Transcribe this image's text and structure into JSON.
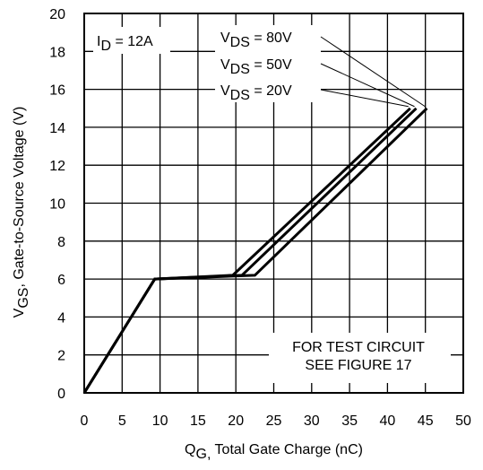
{
  "chart_data": {
    "type": "line",
    "xlim": [
      0,
      50
    ],
    "ylim": [
      0,
      20
    ],
    "xticks": [
      0,
      5,
      10,
      15,
      20,
      25,
      30,
      35,
      40,
      45,
      50
    ],
    "yticks": [
      0,
      2,
      4,
      6,
      8,
      10,
      12,
      14,
      16,
      18,
      20
    ],
    "xticks_label": [
      "0",
      "5",
      "10",
      "15",
      "20",
      "25",
      "30",
      "35",
      "40",
      "45",
      "50"
    ],
    "yticks_label": [
      "0",
      "2",
      "4",
      "6",
      "8",
      "10",
      "12",
      "14",
      "16",
      "18",
      "20"
    ],
    "grid": true,
    "xlabel": {
      "main": "Q",
      "sub": "G,",
      "rest": " Total Gate Charge (nC)"
    },
    "ylabel": {
      "main": "V",
      "sub": "GS",
      "rest": ", Gate-to-Source Voltage (V)"
    },
    "condition": {
      "main": "I",
      "sub": "D",
      "rest": " = 12A"
    },
    "series": [
      {
        "name": "VDS = 80V",
        "label": {
          "main": "V",
          "sub": "DS",
          "rest": " = 80V"
        },
        "x": [
          0,
          9.3,
          22.5,
          45.2
        ],
        "y": [
          0,
          6.0,
          6.2,
          15.0
        ]
      },
      {
        "name": "VDS = 50V",
        "label": {
          "main": "V",
          "sub": "DS",
          "rest": " = 50V"
        },
        "x": [
          0,
          9.3,
          20.8,
          43.8
        ],
        "y": [
          0,
          6.0,
          6.2,
          15.0
        ]
      },
      {
        "name": "VDS = 20V",
        "label": {
          "main": "V",
          "sub": "DS",
          "rest": " = 20V"
        },
        "x": [
          0,
          9.3,
          19.6,
          43.0
        ],
        "y": [
          0,
          6.0,
          6.2,
          15.0
        ]
      }
    ],
    "note": [
      "FOR TEST CIRCUIT",
      "SEE FIGURE 17"
    ]
  }
}
